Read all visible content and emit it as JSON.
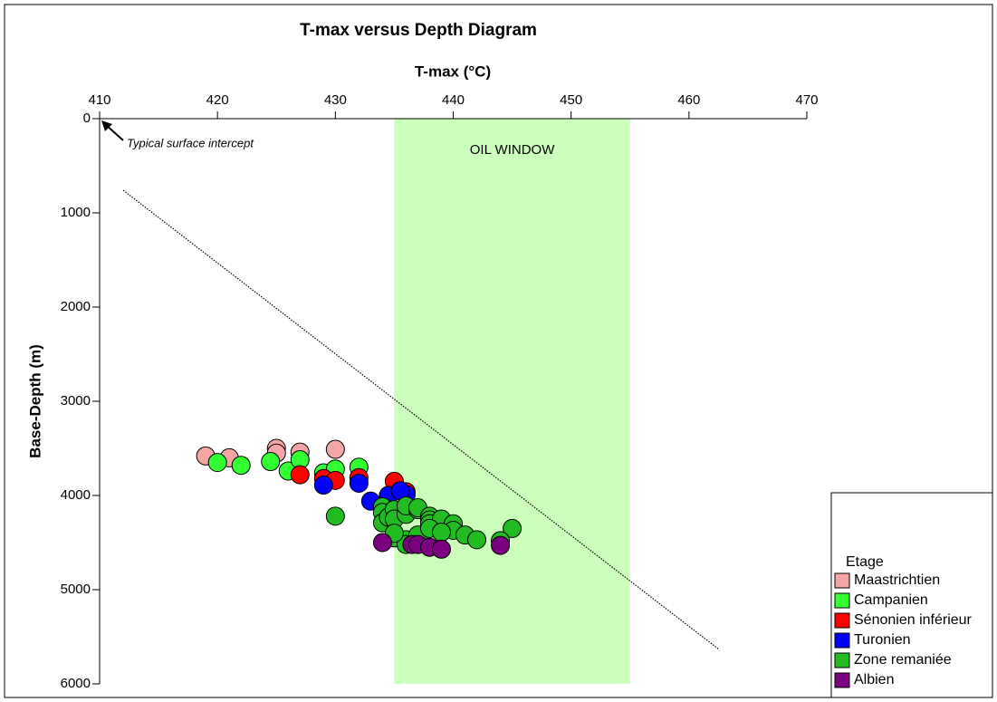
{
  "chart_data": {
    "type": "scatter",
    "title": "T-max versus Depth Diagram",
    "x_label": "T-max (°C)",
    "y_label": "Base-Depth (m)",
    "xlim": [
      410,
      470
    ],
    "ylim": [
      0,
      6000
    ],
    "xticks": [
      410,
      420,
      430,
      440,
      450,
      460,
      470
    ],
    "yticks": [
      0,
      1000,
      2000,
      3000,
      4000,
      5000,
      6000
    ],
    "y_inverted": true,
    "x_axis_position": "top",
    "oil_window": {
      "label": "OIL WINDOW",
      "x": [
        435,
        455
      ],
      "color": "#ccffbb"
    },
    "trend_line": {
      "x": [
        412,
        462.5
      ],
      "y": [
        760,
        5630
      ]
    },
    "annotation": {
      "text": "Typical surface intercept",
      "x": 410,
      "y": 0
    },
    "legend_title": "Etage",
    "legend_position": "lower right",
    "series": [
      {
        "name": "Maastrichtien",
        "color": "#f4a6a6",
        "x": [
          419,
          421,
          425,
          425,
          427,
          430
        ],
        "values": [
          3580,
          3600,
          3500,
          3550,
          3540,
          3510
        ]
      },
      {
        "name": "Campanien",
        "color": "#33ff33",
        "x": [
          420,
          422,
          424.5,
          426,
          427,
          429,
          430,
          432
        ],
        "values": [
          3650,
          3680,
          3640,
          3740,
          3620,
          3760,
          3720,
          3700
        ]
      },
      {
        "name": "Sénonien inférieur",
        "color": "#ff0000",
        "x": [
          427,
          429,
          430,
          432,
          435,
          436
        ],
        "values": [
          3780,
          3820,
          3840,
          3810,
          3850,
          3960
        ]
      },
      {
        "name": "Turonien",
        "color": "#0000ff",
        "x": [
          429,
          432,
          433,
          434.5,
          436,
          435.5
        ],
        "values": [
          3890,
          3870,
          4060,
          4000,
          3990,
          3950
        ]
      },
      {
        "name": "Zone remaniée",
        "color": "#22bb22",
        "x": [
          430,
          434,
          434,
          434,
          434.5,
          435,
          435,
          436,
          436,
          437,
          437,
          438,
          438,
          438,
          439,
          439,
          440,
          440,
          441,
          442,
          445,
          444,
          435,
          436,
          436,
          437,
          438,
          439,
          435
        ],
        "values": [
          4220,
          4120,
          4180,
          4290,
          4230,
          4150,
          4250,
          4200,
          4110,
          4150,
          4130,
          4220,
          4260,
          4300,
          4280,
          4250,
          4300,
          4370,
          4420,
          4470,
          4350,
          4480,
          4450,
          4470,
          4520,
          4420,
          4350,
          4390,
          4400
        ]
      },
      {
        "name": "Albien",
        "color": "#7a0080",
        "x": [
          434,
          436.5,
          437,
          438,
          439,
          444
        ],
        "values": [
          4500,
          4520,
          4520,
          4550,
          4570,
          4530
        ]
      }
    ]
  }
}
